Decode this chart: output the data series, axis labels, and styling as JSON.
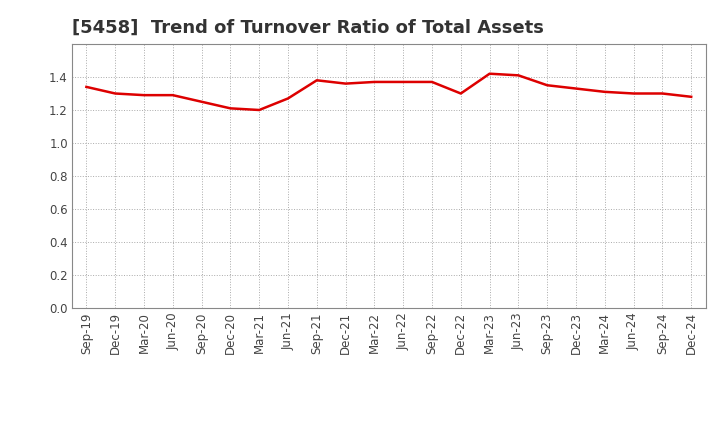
{
  "title": "[5458]  Trend of Turnover Ratio of Total Assets",
  "labels": [
    "Sep-19",
    "Dec-19",
    "Mar-20",
    "Jun-20",
    "Sep-20",
    "Dec-20",
    "Mar-21",
    "Jun-21",
    "Sep-21",
    "Dec-21",
    "Mar-22",
    "Jun-22",
    "Sep-22",
    "Dec-22",
    "Mar-23",
    "Jun-23",
    "Sep-23",
    "Dec-23",
    "Mar-24",
    "Jun-24",
    "Sep-24",
    "Dec-24"
  ],
  "values": [
    1.34,
    1.3,
    1.29,
    1.29,
    1.25,
    1.21,
    1.2,
    1.27,
    1.38,
    1.36,
    1.37,
    1.37,
    1.37,
    1.3,
    1.42,
    1.41,
    1.35,
    1.33,
    1.31,
    1.3,
    1.3,
    1.28
  ],
  "line_color": "#dd0000",
  "line_width": 1.8,
  "ylim": [
    0.0,
    1.6
  ],
  "yticks": [
    0.0,
    0.2,
    0.4,
    0.6,
    0.8,
    1.0,
    1.2,
    1.4
  ],
  "grid_color": "#aaaaaa",
  "background_color": "#ffffff",
  "title_fontsize": 13,
  "tick_fontsize": 8.5
}
